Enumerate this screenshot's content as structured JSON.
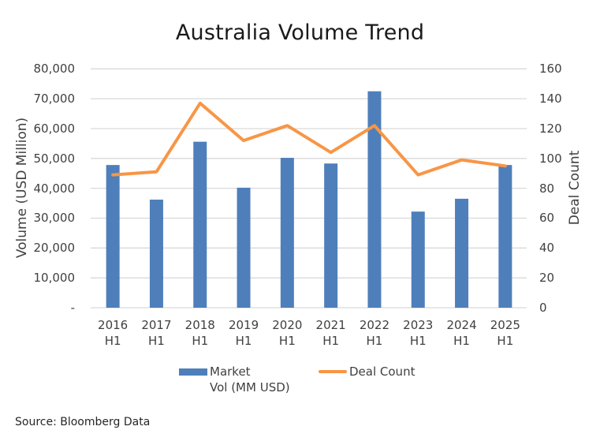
{
  "chart_data": {
    "type": "bar+line",
    "title": "Australia Volume Trend",
    "categories": [
      "2016 H1",
      "2017 H1",
      "2018 H1",
      "2019 H1",
      "2020 H1",
      "2021 H1",
      "2022 H1",
      "2023 H1",
      "2024 H1",
      "2025 H1"
    ],
    "category_lines": [
      [
        "2016",
        "H1"
      ],
      [
        "2017",
        "H1"
      ],
      [
        "2018",
        "H1"
      ],
      [
        "2019",
        "H1"
      ],
      [
        "2020",
        "H1"
      ],
      [
        "2021",
        "H1"
      ],
      [
        "2022",
        "H1"
      ],
      [
        "2023",
        "H1"
      ],
      [
        "2024",
        "H1"
      ],
      [
        "2025",
        "H1"
      ]
    ],
    "series": [
      {
        "name": "Market Vol (MM USD)",
        "type": "bar",
        "axis": "left",
        "color": "#4e7fbb",
        "values": [
          47800,
          36200,
          55600,
          40200,
          50200,
          48300,
          72500,
          32200,
          36500,
          47800
        ]
      },
      {
        "name": "Deal Count",
        "type": "line",
        "axis": "right",
        "color": "#f79646",
        "values": [
          89,
          91,
          137,
          112,
          122,
          104,
          122,
          89,
          99,
          95
        ]
      }
    ],
    "ylabel": "Volume (USD Million)",
    "ylabel_right": "Deal Count",
    "xlabel": "",
    "ylim": [
      0,
      80000
    ],
    "ylim_right": [
      0,
      160
    ],
    "yticks": [
      "-",
      "10,000",
      "20,000",
      "30,000",
      "40,000",
      "50,000",
      "60,000",
      "70,000",
      "80,000"
    ],
    "yticks_right": [
      "0",
      "20",
      "40",
      "60",
      "80",
      "100",
      "120",
      "140",
      "160"
    ],
    "grid": true,
    "legend_position": "bottom"
  },
  "legend": {
    "bar_label_line1": "Market",
    "bar_label_line2": "Vol (MM USD)",
    "line_label": "Deal Count"
  },
  "source": "Source: Bloomberg Data",
  "colors": {
    "bar": "#4e7fbb",
    "line": "#f79646",
    "grid": "#d9d9d9"
  }
}
